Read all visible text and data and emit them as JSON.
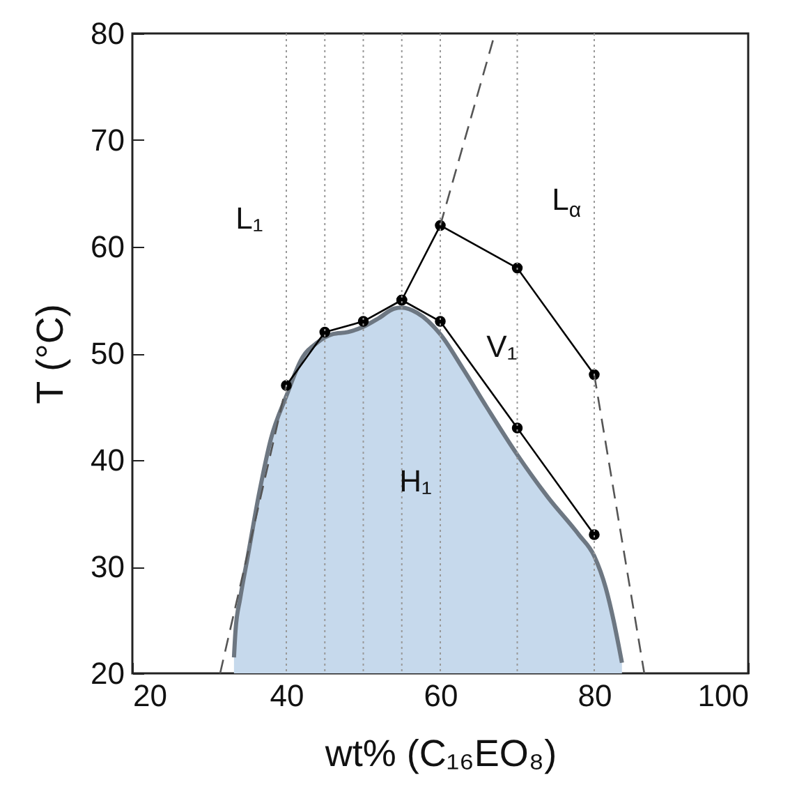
{
  "chart_data": {
    "type": "line",
    "xlabel": "wt% (C₁₆EO₈)",
    "ylabel": "T (°C)",
    "xlim": [
      20,
      100
    ],
    "xticks": [
      20,
      40,
      60,
      80,
      100
    ],
    "ylim": [
      20,
      80
    ],
    "yticks": [
      20,
      30,
      40,
      50,
      60,
      70,
      80
    ],
    "grid": false,
    "series": [
      {
        "type": "area",
        "color": "#c6d9ec",
        "x": [
          33.2,
          33.4,
          34,
          35,
          36.5,
          38,
          40,
          42,
          44,
          46,
          48,
          50,
          52,
          54,
          55,
          57,
          60,
          63,
          66,
          70,
          74,
          78,
          80,
          81.5,
          82.5,
          83.2,
          83.6
        ],
        "values": [
          21.5,
          24,
          27,
          31,
          37,
          42,
          46,
          49.5,
          51,
          51.8,
          52,
          52.5,
          53.3,
          54.2,
          54.3,
          53.8,
          51.8,
          48.5,
          45,
          40.5,
          36.5,
          33,
          31,
          28,
          25,
          22.5,
          21
        ]
      },
      {
        "color": "#000000",
        "marker": "circle",
        "line_style": "solid",
        "x": [
          40,
          45,
          50,
          55,
          60,
          70,
          80
        ],
        "values": [
          47,
          52,
          53,
          55,
          53,
          43,
          33
        ]
      },
      {
        "color": "#000000",
        "marker": "circle",
        "line_style": "solid",
        "x": [
          55,
          60,
          70,
          80
        ],
        "values": [
          55,
          62,
          58,
          48
        ]
      },
      {
        "color": "#555555",
        "marker": "none",
        "line_style": "dashed",
        "x": [
          31.4,
          40
        ],
        "values": [
          20,
          47
        ]
      },
      {
        "color": "#555555",
        "marker": "none",
        "line_style": "dashed",
        "x": [
          60,
          67.1
        ],
        "values": [
          62,
          80
        ]
      },
      {
        "color": "#555555",
        "marker": "none",
        "line_style": "dashed",
        "x": [
          80,
          86.5
        ],
        "values": [
          48,
          20
        ]
      }
    ],
    "ref_lines": [
      {
        "axis": "x",
        "value": 40,
        "color": "#999999",
        "line_style": "dotted"
      },
      {
        "axis": "x",
        "value": 45,
        "color": "#999999",
        "line_style": "dotted"
      },
      {
        "axis": "x",
        "value": 50,
        "color": "#999999",
        "line_style": "dotted"
      },
      {
        "axis": "x",
        "value": 55,
        "color": "#999999",
        "line_style": "dotted"
      },
      {
        "axis": "x",
        "value": 60,
        "color": "#999999",
        "line_style": "dotted"
      },
      {
        "axis": "x",
        "value": 70,
        "color": "#999999",
        "line_style": "dotted"
      },
      {
        "axis": "x",
        "value": 80,
        "color": "#999999",
        "line_style": "dotted"
      }
    ],
    "annotations": [
      "L₁",
      "L$_{α}$",
      "V₁",
      "H₁"
    ]
  }
}
